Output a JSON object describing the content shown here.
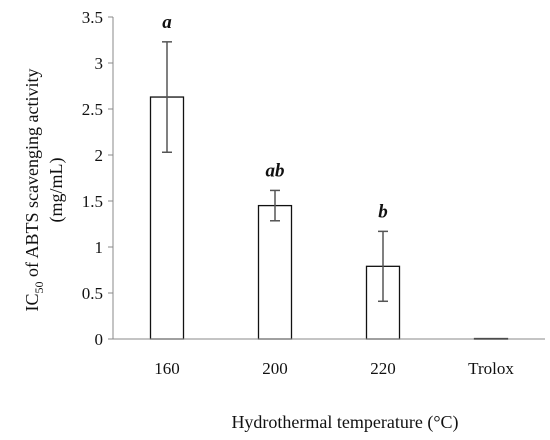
{
  "chart_data": {
    "type": "bar",
    "categories": [
      "160",
      "200",
      "220",
      "Trolox"
    ],
    "values": [
      2.63,
      1.45,
      0.79,
      0.005
    ],
    "errors": [
      0.6,
      0.165,
      0.38,
      0.0
    ],
    "significance": [
      "a",
      "ab",
      "b",
      ""
    ],
    "xlabel": "Hydrothermal temperature (°C)",
    "ylabel": {
      "prefix": "IC",
      "subscript": "50",
      "rest": " of ABTS scavenging activity",
      "unit": "(mg/mL)"
    },
    "ylim": [
      0,
      3.5
    ],
    "yticks": [
      "0",
      "0.5",
      "1",
      "1.5",
      "2",
      "2.5",
      "3",
      "3.5"
    ],
    "grid": false,
    "legend": "none",
    "colors": {
      "bar_fill": "#ffffff",
      "bar_stroke": "#111111",
      "axis": "#888888",
      "error_bar": "#555555"
    }
  }
}
